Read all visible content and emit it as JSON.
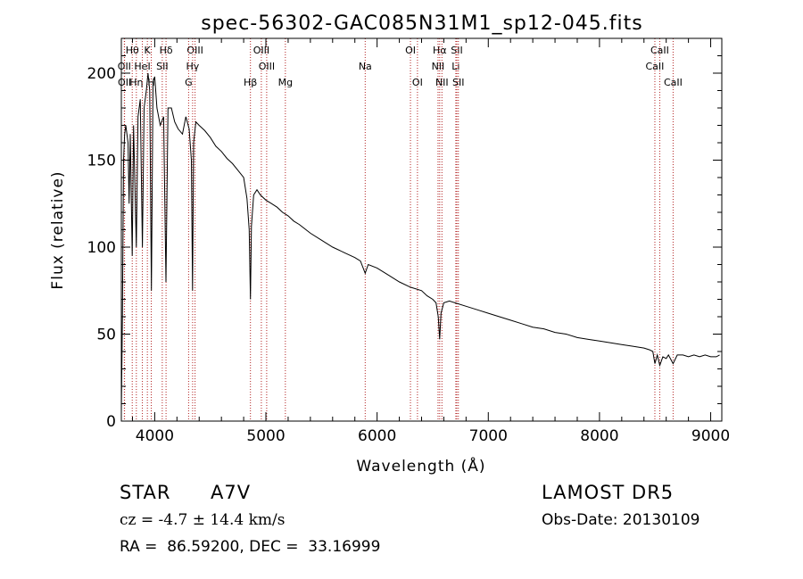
{
  "chart_data": {
    "type": "line",
    "title": "spec-56302-GAC085N31M1_sp12-045.fits",
    "xlabel": "Wavelength (Å)",
    "ylabel": "Flux (relative)",
    "xlim": [
      3700,
      9100
    ],
    "ylim": [
      0,
      220
    ],
    "xticks": [
      4000,
      5000,
      6000,
      7000,
      8000,
      9000
    ],
    "xtick_labels": [
      "4000",
      "5000",
      "6000",
      "7000",
      "8000",
      "9000"
    ],
    "yticks": [
      0,
      50,
      100,
      150,
      200
    ],
    "ytick_labels": [
      "0",
      "50",
      "100",
      "150",
      "200"
    ],
    "line_color": "#000000",
    "marker_color": "#b22222",
    "series": [
      {
        "x": [
          3700,
          3710,
          3720,
          3730,
          3740,
          3760,
          3770,
          3780,
          3798,
          3810,
          3835,
          3850,
          3870,
          3889,
          3905,
          3925,
          3940,
          3955,
          3970,
          3985,
          4000,
          4020,
          4050,
          4080,
          4101,
          4120,
          4150,
          4180,
          4210,
          4250,
          4280,
          4310,
          4330,
          4340,
          4350,
          4370,
          4400,
          4450,
          4500,
          4550,
          4600,
          4650,
          4700,
          4750,
          4800,
          4830,
          4850,
          4861,
          4870,
          4890,
          4920,
          4950,
          5000,
          5050,
          5100,
          5150,
          5200,
          5250,
          5300,
          5400,
          5500,
          5600,
          5700,
          5800,
          5850,
          5893,
          5920,
          6000,
          6100,
          6200,
          6300,
          6400,
          6450,
          6500,
          6530,
          6550,
          6563,
          6575,
          6600,
          6650,
          6700,
          6800,
          6900,
          7000,
          7100,
          7200,
          7300,
          7400,
          7500,
          7600,
          7700,
          7800,
          7900,
          8000,
          8100,
          8200,
          8300,
          8400,
          8450,
          8480,
          8498,
          8520,
          8542,
          8570,
          8600,
          8620,
          8662,
          8700,
          8750,
          8800,
          8850,
          8900,
          8950,
          9000,
          9050,
          9080
        ],
        "y": [
          5,
          60,
          150,
          165,
          170,
          160,
          125,
          165,
          95,
          170,
          100,
          175,
          185,
          100,
          180,
          190,
          200,
          190,
          75,
          195,
          198,
          180,
          170,
          175,
          80,
          180,
          180,
          172,
          168,
          165,
          175,
          168,
          150,
          75,
          160,
          172,
          170,
          167,
          163,
          158,
          155,
          151,
          148,
          144,
          140,
          128,
          110,
          70,
          112,
          130,
          133,
          130,
          127,
          125,
          123,
          120,
          118,
          115,
          113,
          108,
          104,
          100,
          97,
          94,
          92,
          85,
          90,
          88,
          84,
          80,
          77,
          75,
          72,
          70,
          68,
          60,
          47,
          62,
          68,
          69,
          68,
          66,
          64,
          62,
          60,
          58,
          56,
          54,
          53,
          51,
          50,
          48,
          47,
          46,
          45,
          44,
          43,
          42,
          41,
          40,
          33,
          38,
          32,
          37,
          36,
          38,
          33,
          38,
          38,
          37,
          38,
          37,
          38,
          37,
          37,
          38
        ]
      }
    ],
    "line_markers": [
      {
        "label": "Hθ",
        "x": 3798,
        "row": 0
      },
      {
        "label": "OII",
        "x": 3727,
        "row": 1
      },
      {
        "label": "OII",
        "x": 3729,
        "row": 2
      },
      {
        "label": "Hη",
        "x": 3835,
        "row": 2
      },
      {
        "label": "HeI",
        "x": 3889,
        "row": 1
      },
      {
        "label": "K",
        "x": 3934,
        "row": 0
      },
      {
        "label": "H",
        "x": 3969,
        "row": 2
      },
      {
        "label": "Hδ",
        "x": 4102,
        "row": 0
      },
      {
        "label": "SII",
        "x": 4068,
        "row": 1
      },
      {
        "label": "OIII",
        "x": 4363,
        "row": 0
      },
      {
        "label": "Hγ",
        "x": 4341,
        "row": 1
      },
      {
        "label": "G",
        "x": 4305,
        "row": 2
      },
      {
        "label": "OIII",
        "x": 4959,
        "row": 0
      },
      {
        "label": "OIII",
        "x": 5007,
        "row": 1
      },
      {
        "label": "Hβ",
        "x": 4861,
        "row": 2
      },
      {
        "label": "Mg",
        "x": 5175,
        "row": 2
      },
      {
        "label": "Na",
        "x": 5893,
        "row": 1
      },
      {
        "label": "OI",
        "x": 6300,
        "row": 0
      },
      {
        "label": "OI",
        "x": 6363,
        "row": 2
      },
      {
        "label": "Hα",
        "x": 6563,
        "row": 0
      },
      {
        "label": "SII",
        "x": 6717,
        "row": 0
      },
      {
        "label": "NII",
        "x": 6548,
        "row": 1
      },
      {
        "label": "Li",
        "x": 6708,
        "row": 1
      },
      {
        "label": "NII",
        "x": 6583,
        "row": 2
      },
      {
        "label": "SII",
        "x": 6731,
        "row": 2
      },
      {
        "label": "CaII",
        "x": 8542,
        "row": 0
      },
      {
        "label": "CaII",
        "x": 8498,
        "row": 1
      },
      {
        "label": "CaII",
        "x": 8662,
        "row": 2
      }
    ]
  },
  "footer": {
    "object_class": "STAR",
    "subclass": "A7V",
    "survey": "LAMOST DR5",
    "cz_line": "cz = -4.7 ± 14.4 km/s",
    "obs_date": "Obs-Date: 20130109",
    "coords": "RA =  86.59200, DEC =  33.16999"
  }
}
